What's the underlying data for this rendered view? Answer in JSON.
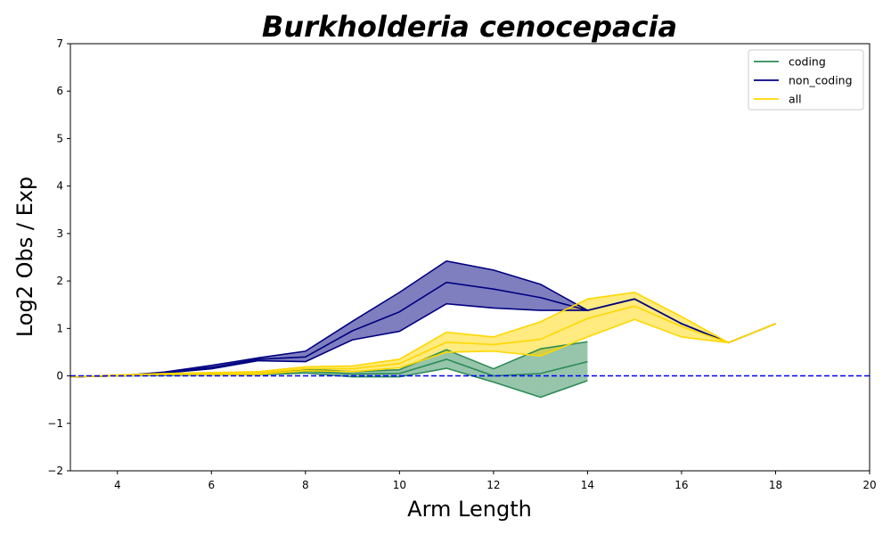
{
  "chart_data": {
    "type": "line",
    "title": "Burkholderia cenocepacia",
    "xlabel": "Arm Length",
    "ylabel": "Log2 Obs / Exp",
    "xlim": [
      3,
      20
    ],
    "ylim": [
      -2,
      7
    ],
    "xticks": [
      "4",
      "6",
      "8",
      "10",
      "12",
      "14",
      "16",
      "18",
      "20"
    ],
    "yticks": [
      "−2",
      "−1",
      "0",
      "1",
      "2",
      "3",
      "4",
      "5",
      "6",
      "7"
    ],
    "xtick_values": [
      4,
      6,
      8,
      10,
      12,
      14,
      16,
      18,
      20
    ],
    "ytick_values": [
      -2,
      -1,
      0,
      1,
      2,
      3,
      4,
      5,
      6,
      7
    ],
    "reference_line": {
      "y": 0,
      "style": "dashed",
      "color": "#0000ff"
    },
    "legend": {
      "position": "top-right",
      "entries": [
        "coding",
        "non_coding",
        "all"
      ]
    },
    "grid": false,
    "series": [
      {
        "name": "coding",
        "color": "#2e8b57",
        "x": [
          3,
          4,
          5,
          6,
          7,
          8,
          9,
          10,
          11,
          12,
          13,
          14
        ],
        "upper": [
          -0.02,
          0.01,
          0.03,
          0.05,
          0.06,
          0.14,
          0.09,
          0.13,
          0.55,
          0.15,
          0.57,
          0.72
        ],
        "mean": [
          -0.02,
          0.0,
          0.02,
          0.03,
          0.04,
          0.1,
          0.04,
          0.05,
          0.35,
          0.0,
          0.05,
          0.3
        ],
        "lower": [
          -0.02,
          0.0,
          0.01,
          0.02,
          0.02,
          0.06,
          -0.02,
          -0.02,
          0.16,
          -0.13,
          -0.45,
          -0.1
        ]
      },
      {
        "name": "non_coding",
        "color": "#000080",
        "x": [
          3,
          4,
          5,
          6,
          7,
          8,
          9,
          10,
          11,
          12,
          13,
          14,
          15,
          16,
          17,
          18
        ],
        "upper": [
          -0.02,
          0.0,
          0.08,
          0.22,
          0.38,
          0.52,
          1.15,
          1.76,
          2.42,
          2.23,
          1.93,
          1.38,
          1.62,
          1.1,
          0.7,
          1.1
        ],
        "mean": [
          -0.02,
          0.0,
          0.07,
          0.18,
          0.35,
          0.4,
          0.95,
          1.35,
          1.97,
          1.83,
          1.65,
          1.38,
          1.62,
          1.1,
          0.7,
          1.1
        ],
        "lower": [
          -0.02,
          0.0,
          0.06,
          0.15,
          0.32,
          0.3,
          0.76,
          0.94,
          1.52,
          1.43,
          1.38,
          1.38,
          1.62,
          1.1,
          0.7,
          1.1
        ]
      },
      {
        "name": "all",
        "color": "#ffd700",
        "x": [
          3,
          4,
          5,
          6,
          7,
          8,
          9,
          10,
          11,
          12,
          13,
          14,
          15,
          16,
          17,
          18
        ],
        "upper": [
          -0.02,
          0.02,
          0.05,
          0.07,
          0.09,
          0.19,
          0.21,
          0.35,
          0.92,
          0.82,
          1.14,
          1.62,
          1.76,
          1.25,
          0.7,
          1.1
        ],
        "mean": [
          -0.02,
          0.01,
          0.04,
          0.05,
          0.06,
          0.15,
          0.15,
          0.26,
          0.71,
          0.66,
          0.77,
          1.21,
          1.47,
          1.04,
          0.7,
          1.1
        ],
        "lower": [
          -0.02,
          0.0,
          0.03,
          0.03,
          0.03,
          0.11,
          0.09,
          0.17,
          0.5,
          0.52,
          0.42,
          0.82,
          1.19,
          0.82,
          0.7,
          1.1
        ]
      }
    ]
  }
}
